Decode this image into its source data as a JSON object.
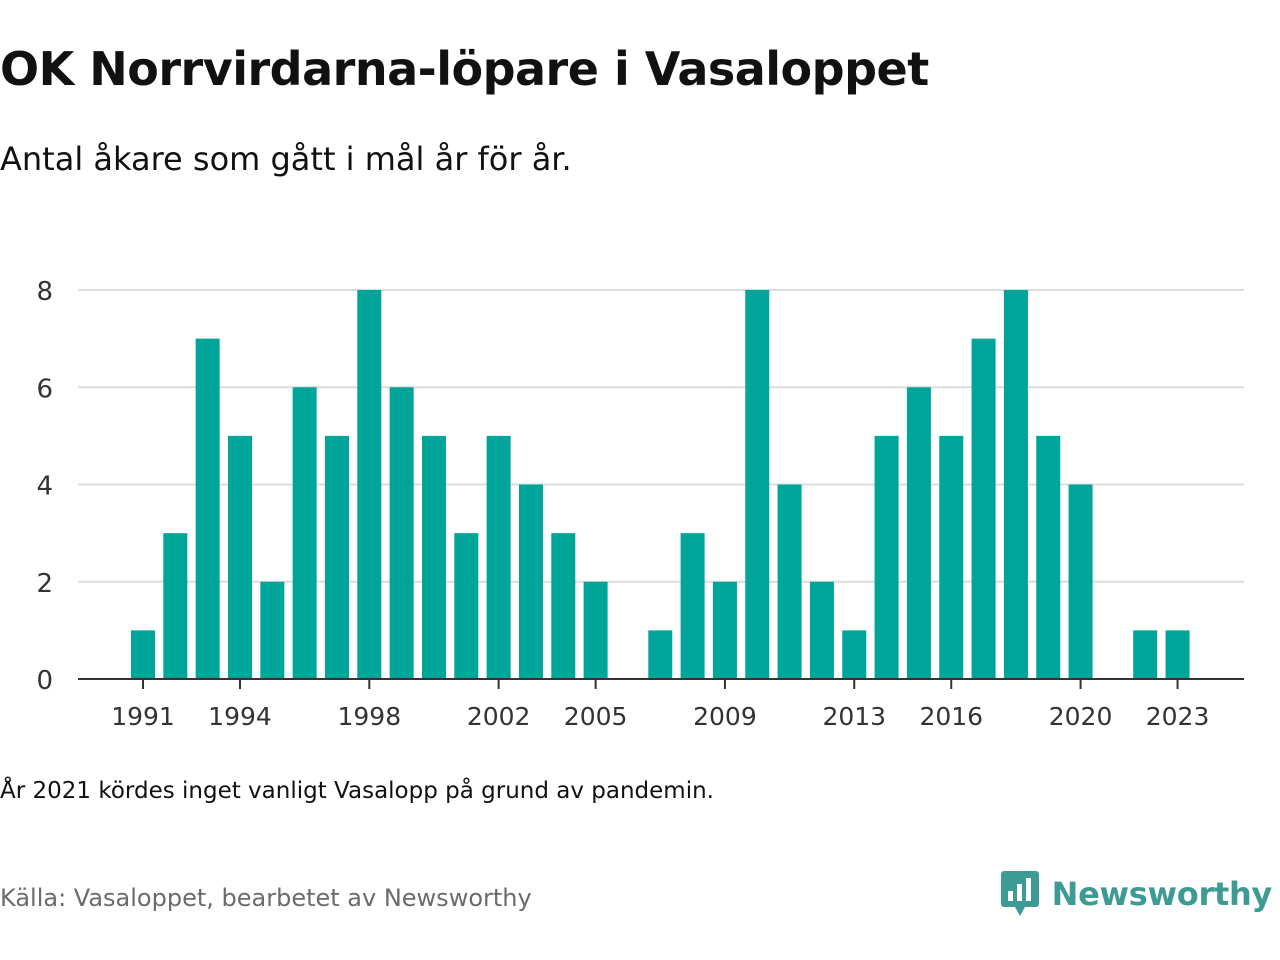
{
  "title": "OK Norrvirdarna-löpare i Vasaloppet",
  "subtitle": "Antal åkare som gått i mål år för år.",
  "note": "År 2021 kördes inget vanligt Vasalopp på grund av pandemin.",
  "source": "Källa: Vasaloppet, bearbetet av Newsworthy",
  "brand": {
    "name": "Newsworthy",
    "color": "#3d9a94",
    "icon": "chart-speech-bubble-icon"
  },
  "chart_data": {
    "type": "bar",
    "color": "#00a59a",
    "x": [
      1991,
      1992,
      1993,
      1994,
      1995,
      1996,
      1997,
      1998,
      1999,
      2000,
      2001,
      2002,
      2003,
      2004,
      2005,
      2006,
      2007,
      2008,
      2009,
      2010,
      2011,
      2012,
      2013,
      2014,
      2015,
      2016,
      2017,
      2018,
      2019,
      2020,
      2021,
      2022,
      2023
    ],
    "values": [
      1,
      3,
      7,
      5,
      2,
      6,
      5,
      8,
      6,
      5,
      3,
      5,
      4,
      3,
      2,
      0,
      1,
      3,
      2,
      8,
      4,
      2,
      1,
      5,
      6,
      5,
      7,
      8,
      5,
      4,
      0,
      1,
      1
    ],
    "xtick_labels": [
      "1991",
      "1994",
      "1998",
      "2002",
      "2005",
      "2009",
      "2013",
      "2016",
      "2020",
      "2023"
    ],
    "yticks": [
      0,
      2,
      4,
      6,
      8
    ],
    "ylim": [
      0,
      8
    ],
    "grid": "horizontal"
  }
}
